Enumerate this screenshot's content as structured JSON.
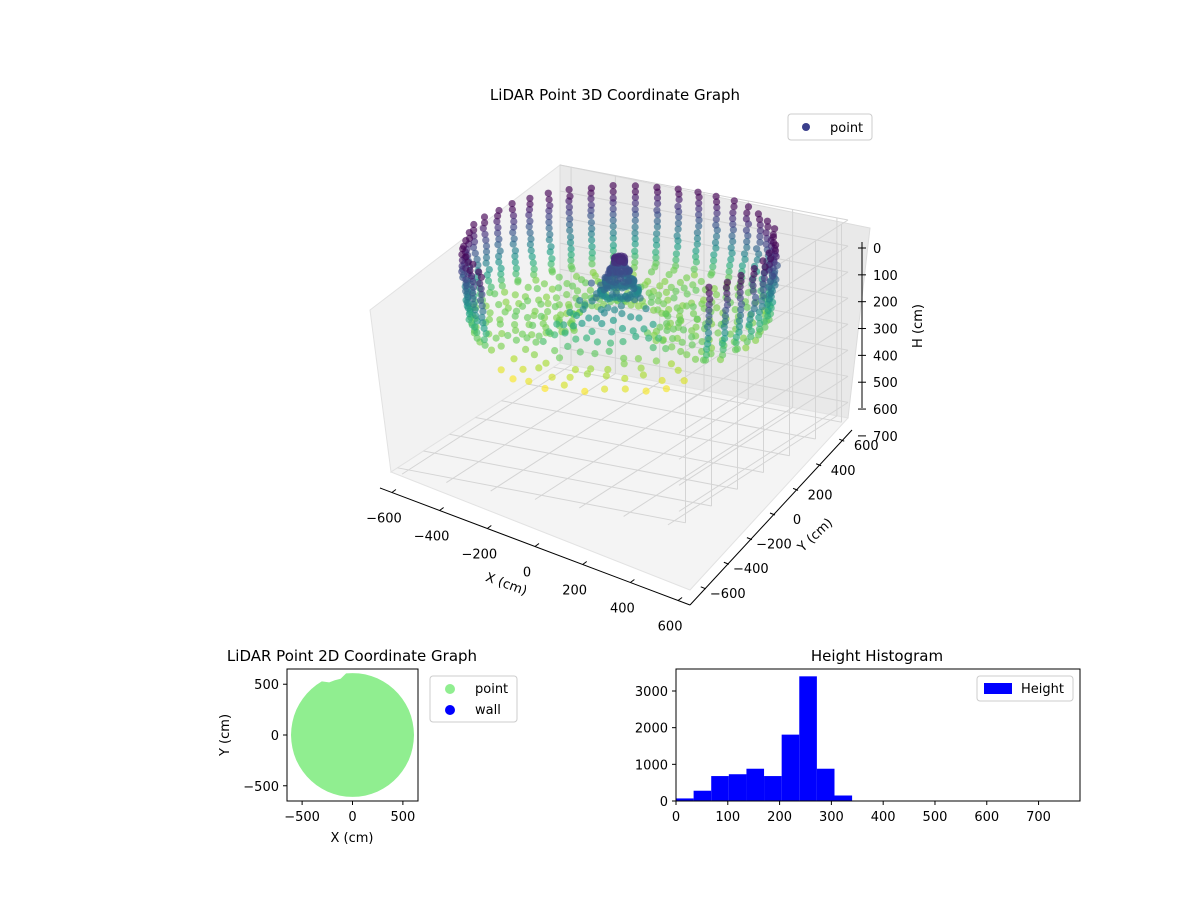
{
  "chart_data": [
    {
      "type": "scatter3d",
      "title": "LiDAR Point 3D Coordinate Graph",
      "xlabel": "X (cm)",
      "ylabel": "Y (cm)",
      "zlabel": "H (cm)",
      "xlim": [
        -650,
        650
      ],
      "ylim": [
        -650,
        650
      ],
      "zlim": [
        0,
        760
      ],
      "z_inverted": true,
      "xticks": [
        -600,
        -400,
        -200,
        0,
        200,
        400,
        600
      ],
      "yticks": [
        -600,
        -400,
        -200,
        0,
        200,
        400,
        600
      ],
      "zticks": [
        0,
        100,
        200,
        300,
        400,
        500,
        600,
        700
      ],
      "legend": {
        "placement": "top-right",
        "entries": [
          {
            "label": "point",
            "color": "#3b3f8c"
          }
        ]
      },
      "colormap": "viridis",
      "grid": true,
      "shape": {
        "description_hidden": true,
        "wall_radius": 600,
        "floor_height": 250,
        "scan_rings": 44
      }
    },
    {
      "type": "scatter",
      "title": "LiDAR Point 2D Coordinate Graph",
      "xlabel": "X (cm)",
      "ylabel": "Y (cm)",
      "xlim": [
        -650,
        650
      ],
      "ylim": [
        -650,
        650
      ],
      "xticks": [
        -500,
        0,
        500
      ],
      "yticks": [
        -500,
        0,
        500
      ],
      "legend": {
        "placement": "outside-right",
        "entries": [
          {
            "label": "point",
            "color": "#90ee90"
          },
          {
            "label": "wall",
            "color": "#0000ff"
          }
        ]
      },
      "series": [
        {
          "name": "point",
          "color": "#90ee90",
          "shape": "disc",
          "radius": 610
        }
      ]
    },
    {
      "type": "bar",
      "title": "Height Histogram",
      "xlim": [
        0,
        780
      ],
      "ylim": [
        0,
        3600
      ],
      "xticks": [
        0,
        100,
        200,
        300,
        400,
        500,
        600,
        700
      ],
      "yticks": [
        0,
        1000,
        2000,
        3000
      ],
      "bin_width": 34,
      "bins": [
        0,
        34,
        68,
        102,
        136,
        170,
        204,
        238,
        272,
        306
      ],
      "values": [
        70,
        280,
        680,
        730,
        880,
        680,
        1810,
        3400,
        880,
        150
      ],
      "color": "#0000ff",
      "legend": {
        "placement": "top-right",
        "entries": [
          {
            "label": "Height",
            "color": "#0000ff"
          }
        ]
      }
    }
  ]
}
